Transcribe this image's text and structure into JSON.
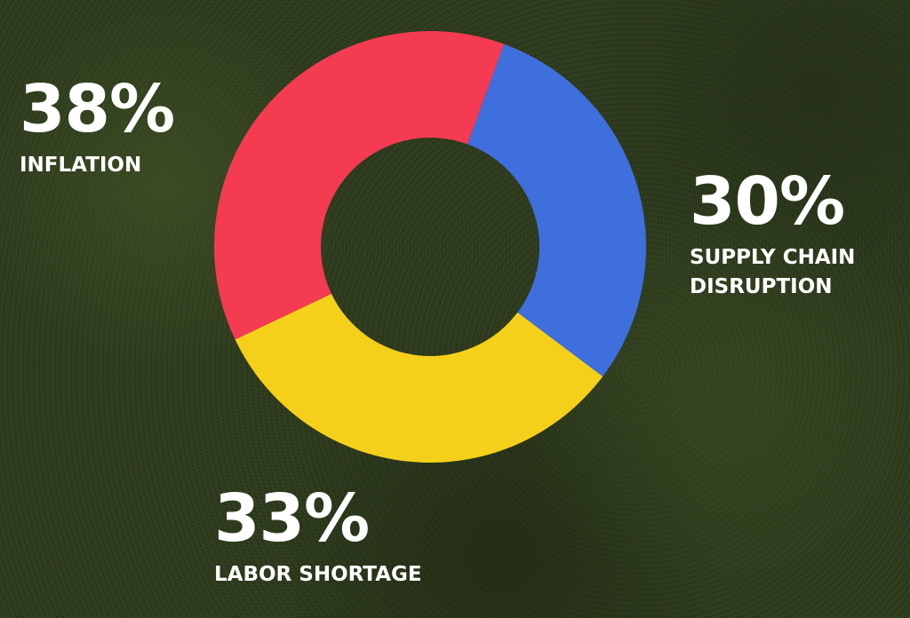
{
  "chart_data": {
    "type": "pie",
    "style": "donut",
    "categories": [
      "INFLATION",
      "SUPPLY CHAIN DISRUPTION",
      "LABOR SHORTAGE"
    ],
    "values": [
      38,
      30,
      33
    ],
    "colors": [
      "#f43b51",
      "#3f6fdc",
      "#f5d01a"
    ],
    "labels": [
      {
        "pct": "38%",
        "lines": [
          "INFLATION"
        ]
      },
      {
        "pct": "30%",
        "lines": [
          "SUPPLY CHAIN",
          "DISRUPTION"
        ]
      },
      {
        "pct": "33%",
        "lines": [
          "LABOR SHORTAGE"
        ]
      }
    ]
  }
}
